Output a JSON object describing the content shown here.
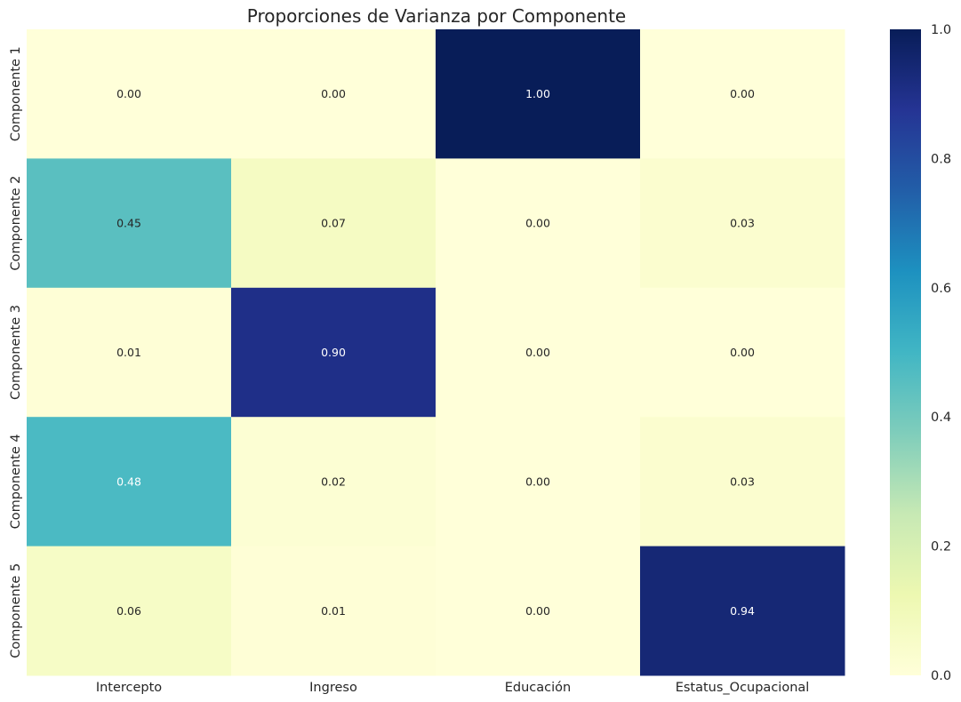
{
  "chart_data": {
    "type": "heatmap",
    "title": "Proporciones de Varianza por Componente",
    "x_labels": [
      "Intercepto",
      "Ingreso",
      "Educación",
      "Estatus_Ocupacional"
    ],
    "y_labels": [
      "Componente 1",
      "Componente 2",
      "Componente 3",
      "Componente 4",
      "Componente 5"
    ],
    "values": [
      [
        0.0,
        0.0,
        1.0,
        0.0
      ],
      [
        0.45,
        0.07,
        0.0,
        0.03
      ],
      [
        0.01,
        0.9,
        0.0,
        0.0
      ],
      [
        0.48,
        0.02,
        0.0,
        0.03
      ],
      [
        0.06,
        0.01,
        0.0,
        0.94
      ]
    ],
    "value_labels": [
      [
        "0.00",
        "0.00",
        "1.00",
        "0.00"
      ],
      [
        "0.45",
        "0.07",
        "0.00",
        "0.03"
      ],
      [
        "0.01",
        "0.90",
        "0.00",
        "0.00"
      ],
      [
        "0.48",
        "0.02",
        "0.00",
        "0.03"
      ],
      [
        "0.06",
        "0.01",
        "0.00",
        "0.94"
      ]
    ],
    "colormap": "YlGnBu",
    "vmin": 0.0,
    "vmax": 1.0,
    "colorbar_ticks": [
      "0.0",
      "0.2",
      "0.4",
      "0.6",
      "0.8",
      "1.0"
    ],
    "xlabel": "",
    "ylabel": ""
  }
}
